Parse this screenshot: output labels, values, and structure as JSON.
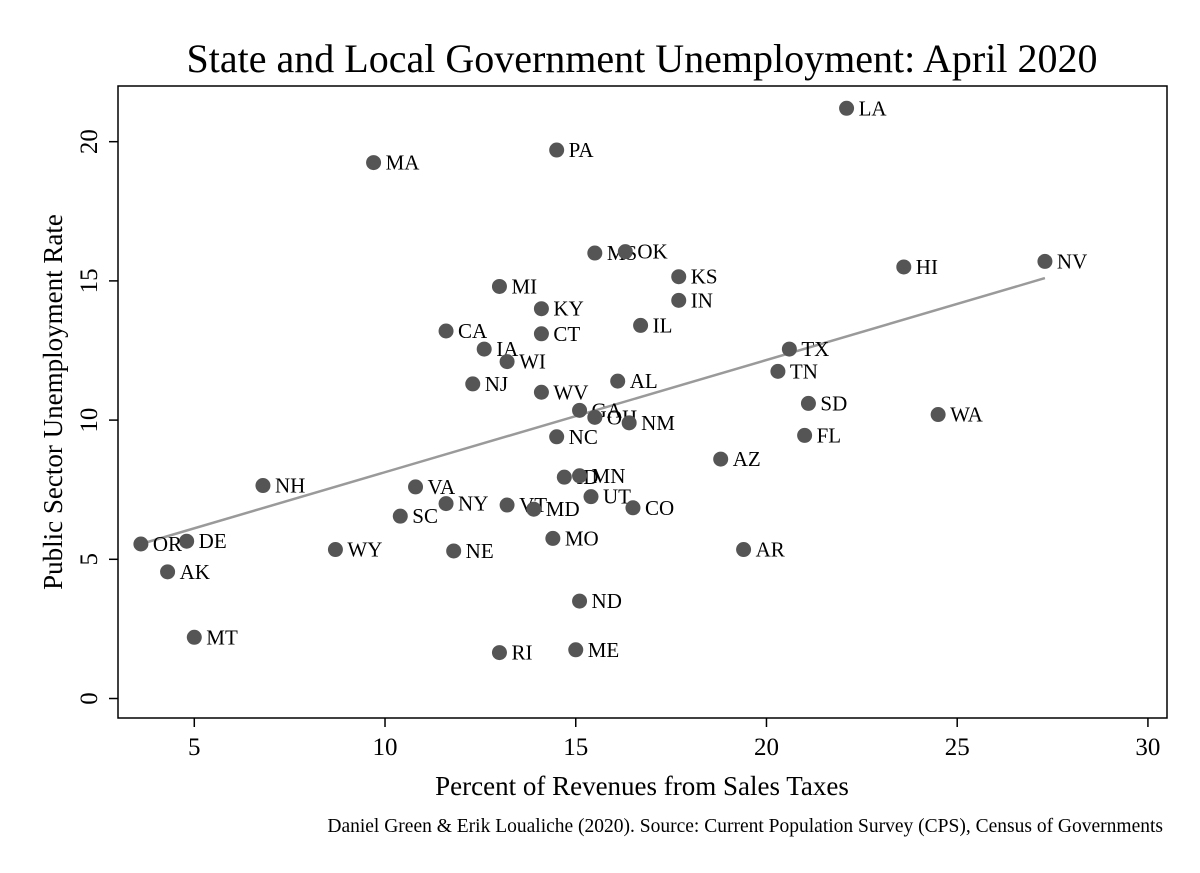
{
  "colors": {
    "point": "#555555",
    "fit_line": "#9a9a9a",
    "axis": "#000000"
  },
  "chart_data": {
    "type": "scatter",
    "title": "State and Local Government Unemployment: April 2020",
    "xlabel": "Percent of Revenues from Sales Taxes",
    "ylabel": "Public Sector Unemployment Rate",
    "note": "Daniel Green & Erik Loualiche (2020). Source: Current Population Survey (CPS), Census of Governments",
    "xlim": [
      3,
      30.5
    ],
    "ylim": [
      -0.7,
      22.0
    ],
    "xticks": [
      5,
      10,
      15,
      20,
      25,
      30
    ],
    "yticks": [
      0,
      5,
      10,
      15,
      20
    ],
    "grid": false,
    "legend": "none",
    "fit_line": {
      "x": [
        3.6,
        27.3
      ],
      "y": [
        5.55,
        15.1
      ]
    },
    "points": [
      {
        "label": "LA",
        "x": 22.1,
        "y": 21.2
      },
      {
        "label": "PA",
        "x": 14.5,
        "y": 19.7
      },
      {
        "label": "MA",
        "x": 9.7,
        "y": 19.25
      },
      {
        "label": "MS",
        "x": 15.5,
        "y": 16.0
      },
      {
        "label": "OK",
        "x": 16.3,
        "y": 16.05
      },
      {
        "label": "NV",
        "x": 27.3,
        "y": 15.7
      },
      {
        "label": "HI",
        "x": 23.6,
        "y": 15.5
      },
      {
        "label": "KS",
        "x": 17.7,
        "y": 15.15
      },
      {
        "label": "MI",
        "x": 13.0,
        "y": 14.8
      },
      {
        "label": "IN",
        "x": 17.7,
        "y": 14.3
      },
      {
        "label": "KY",
        "x": 14.1,
        "y": 14.0
      },
      {
        "label": "IL",
        "x": 16.7,
        "y": 13.4
      },
      {
        "label": "CA",
        "x": 11.6,
        "y": 13.2
      },
      {
        "label": "CT",
        "x": 14.1,
        "y": 13.1
      },
      {
        "label": "IA",
        "x": 12.6,
        "y": 12.55
      },
      {
        "label": "TX",
        "x": 20.6,
        "y": 12.55
      },
      {
        "label": "WI",
        "x": 13.2,
        "y": 12.1
      },
      {
        "label": "TN",
        "x": 20.3,
        "y": 11.75
      },
      {
        "label": "AL",
        "x": 16.1,
        "y": 11.4
      },
      {
        "label": "NJ",
        "x": 12.3,
        "y": 11.3
      },
      {
        "label": "WV",
        "x": 14.1,
        "y": 11.0
      },
      {
        "label": "SD",
        "x": 21.1,
        "y": 10.6
      },
      {
        "label": "GA",
        "x": 15.1,
        "y": 10.35
      },
      {
        "label": "WA",
        "x": 24.5,
        "y": 10.2
      },
      {
        "label": "OH",
        "x": 15.5,
        "y": 10.1
      },
      {
        "label": "NM",
        "x": 16.4,
        "y": 9.9
      },
      {
        "label": "FL",
        "x": 21.0,
        "y": 9.45
      },
      {
        "label": "NC",
        "x": 14.5,
        "y": 9.4
      },
      {
        "label": "AZ",
        "x": 18.8,
        "y": 8.6
      },
      {
        "label": "ID",
        "x": 14.7,
        "y": 7.95
      },
      {
        "label": "MN",
        "x": 15.1,
        "y": 8.0
      },
      {
        "label": "NH",
        "x": 6.8,
        "y": 7.65
      },
      {
        "label": "VA",
        "x": 10.8,
        "y": 7.6
      },
      {
        "label": "UT",
        "x": 15.4,
        "y": 7.25
      },
      {
        "label": "NY",
        "x": 11.6,
        "y": 7.0
      },
      {
        "label": "VT",
        "x": 13.2,
        "y": 6.95
      },
      {
        "label": "CO",
        "x": 16.5,
        "y": 6.85
      },
      {
        "label": "MD",
        "x": 13.9,
        "y": 6.8
      },
      {
        "label": "SC",
        "x": 10.4,
        "y": 6.55
      },
      {
        "label": "MO",
        "x": 14.4,
        "y": 5.75
      },
      {
        "label": "DE",
        "x": 4.8,
        "y": 5.65
      },
      {
        "label": "OR",
        "x": 3.6,
        "y": 5.55
      },
      {
        "label": "WY",
        "x": 8.7,
        "y": 5.35
      },
      {
        "label": "AR",
        "x": 19.4,
        "y": 5.35
      },
      {
        "label": "NE",
        "x": 11.8,
        "y": 5.3
      },
      {
        "label": "AK",
        "x": 4.3,
        "y": 4.55
      },
      {
        "label": "ND",
        "x": 15.1,
        "y": 3.5
      },
      {
        "label": "MT",
        "x": 5.0,
        "y": 2.2
      },
      {
        "label": "ME",
        "x": 15.0,
        "y": 1.75
      },
      {
        "label": "RI",
        "x": 13.0,
        "y": 1.65
      }
    ]
  }
}
